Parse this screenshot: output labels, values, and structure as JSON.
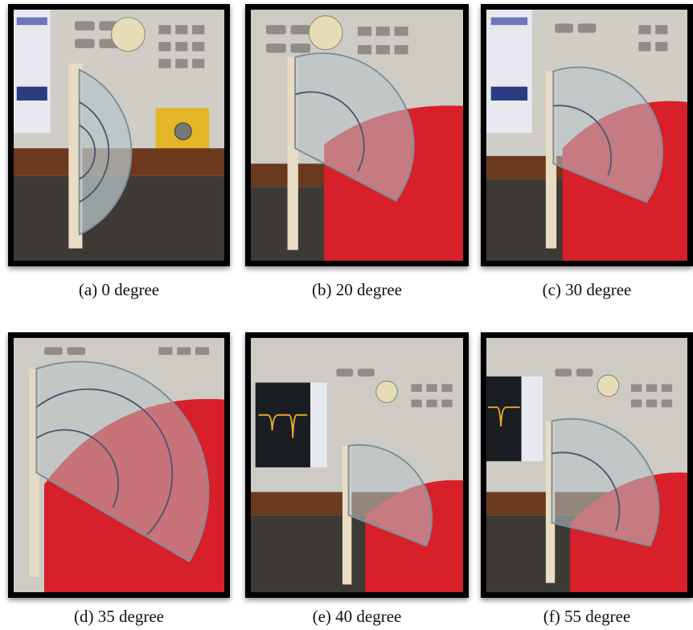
{
  "panels": [
    {
      "id": "a",
      "caption": "(a) 0 degree",
      "angle_deg": 0
    },
    {
      "id": "b",
      "caption": "(b) 20 degree",
      "angle_deg": 20
    },
    {
      "id": "c",
      "caption": "(c) 30 degree",
      "angle_deg": 30
    },
    {
      "id": "d",
      "caption": "(d) 35 degree",
      "angle_deg": 35
    },
    {
      "id": "e",
      "caption": "(e)  40 degree",
      "angle_deg": 40
    },
    {
      "id": "f",
      "caption": "(f) 55 degree",
      "angle_deg": 55
    }
  ],
  "colors": {
    "frame": "#000000",
    "instrument_panel": "#c9c7bf",
    "bench": "#6b3a1e",
    "cushion_red": "#d8202a",
    "protractor": "#b8c4c8",
    "knob": "#e4ddb8",
    "screen": "#1a1d22",
    "trace": "#e8a82a"
  },
  "icons": [
    "protractor-icon",
    "instrument-knob-icon",
    "red-cushion-icon",
    "analyzer-screen-icon"
  ]
}
